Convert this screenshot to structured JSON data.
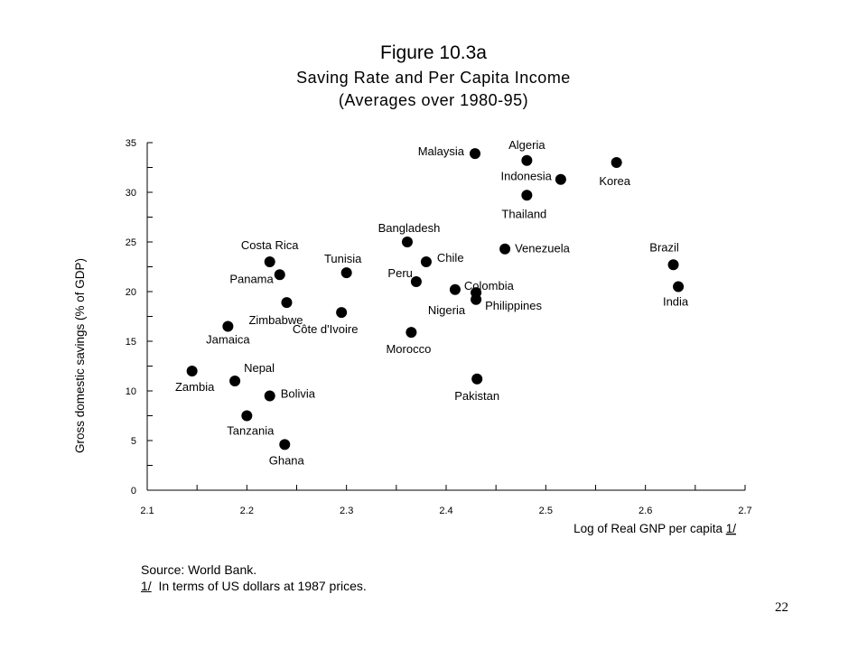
{
  "chart_data": {
    "type": "scatter",
    "title": "Figure 10.3a",
    "subtitle": "Saving Rate and Per Capita Income",
    "subtitle2": "(Averages over 1980-95)",
    "xlabel": "Log of Real GNP per capita ",
    "xlabel_footnote": "1/",
    "ylabel": "Gross domestic savings (% of GDP)",
    "xlim": [
      2.1,
      2.7
    ],
    "ylim": [
      0,
      35
    ],
    "x_ticks": [
      "2.1",
      "2.2",
      "2.3",
      "2.4",
      "2.5",
      "2.6",
      "2.7"
    ],
    "y_ticks": [
      "0",
      "5",
      "10",
      "15",
      "20",
      "25",
      "30",
      "35"
    ],
    "grid": false,
    "points": [
      {
        "label": "Malaysia",
        "x": 2.429,
        "y": 33.9
      },
      {
        "label": "Algeria",
        "x": 2.481,
        "y": 33.2
      },
      {
        "label": "Indonesia",
        "x": 2.515,
        "y": 31.3
      },
      {
        "label": "Korea",
        "x": 2.571,
        "y": 33.0
      },
      {
        "label": "Thailand",
        "x": 2.481,
        "y": 29.7
      },
      {
        "label": "Bangladesh",
        "x": 2.361,
        "y": 25.0
      },
      {
        "label": "Costa Rica",
        "x": 2.223,
        "y": 23.0
      },
      {
        "label": "Tunisia",
        "x": 2.3,
        "y": 21.9
      },
      {
        "label": "Chile",
        "x": 2.38,
        "y": 23.0
      },
      {
        "label": "Venezuela",
        "x": 2.459,
        "y": 24.3
      },
      {
        "label": "Brazil",
        "x": 2.628,
        "y": 22.7
      },
      {
        "label": "Panama",
        "x": 2.233,
        "y": 21.7
      },
      {
        "label": "Peru",
        "x": 2.37,
        "y": 21.0
      },
      {
        "label": "Colombia",
        "x": 2.409,
        "y": 20.2
      },
      {
        "label": "Philippines",
        "x": 2.43,
        "y": 19.2
      },
      {
        "label": "Nigeria",
        "x": 2.43,
        "y": 19.9
      },
      {
        "label": "India",
        "x": 2.633,
        "y": 20.5
      },
      {
        "label": "Zimbabwe",
        "x": 2.24,
        "y": 18.9
      },
      {
        "label": "Côte d'Ivoire",
        "x": 2.295,
        "y": 17.9
      },
      {
        "label": "Jamaica",
        "x": 2.181,
        "y": 16.5
      },
      {
        "label": "Morocco",
        "x": 2.365,
        "y": 15.9
      },
      {
        "label": "Zambia",
        "x": 2.145,
        "y": 12.0
      },
      {
        "label": "Nepal",
        "x": 2.188,
        "y": 11.0
      },
      {
        "label": "Bolivia",
        "x": 2.223,
        "y": 9.5
      },
      {
        "label": "Pakistan",
        "x": 2.431,
        "y": 11.2
      },
      {
        "label": "Tanzania",
        "x": 2.2,
        "y": 7.5
      },
      {
        "label": "Ghana",
        "x": 2.238,
        "y": 4.6
      }
    ]
  },
  "notes": {
    "source": "Source: World Bank.",
    "footnote_marker": "1/",
    "footnote_text": "  In terms of US dollars at 1987 prices."
  },
  "page_number": "22"
}
